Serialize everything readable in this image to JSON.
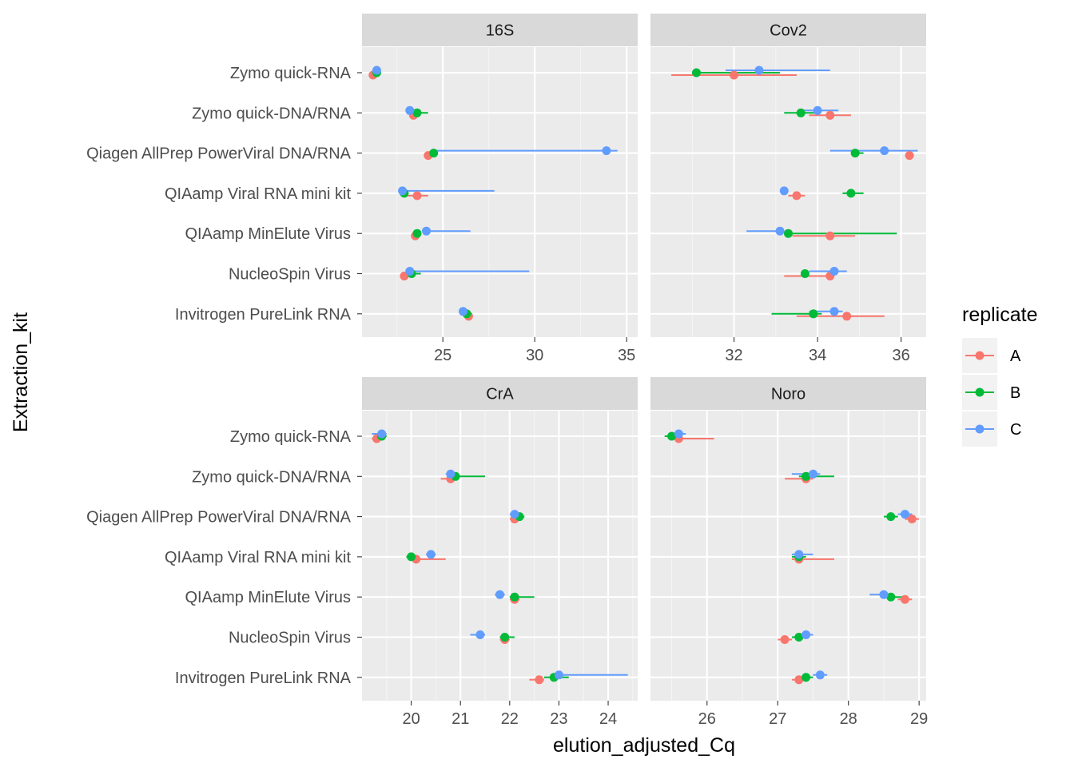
{
  "chart_data": {
    "type": "scatter",
    "subtype": "faceted dot plot with horizontal range bars",
    "xlabel": "elution_adjusted_Cq",
    "ylabel": "Extraction_kit",
    "legend": {
      "title": "replicate",
      "position": "right",
      "entries": [
        {
          "name": "A",
          "color": "#F8766D"
        },
        {
          "name": "B",
          "color": "#00BA38"
        },
        {
          "name": "C",
          "color": "#619CFF"
        }
      ]
    },
    "grid": true,
    "panel_background": "#EBEBEB",
    "strip_background": "#D9D9D9",
    "categories": [
      "Zymo quick-RNA",
      "Zymo quick-DNA/RNA",
      "Qiagen AllPrep PowerViral DNA/RNA",
      "QIAamp Viral RNA mini kit",
      "QIAamp MinElute Virus",
      "NucleoSpin Virus",
      "Invitrogen PureLink RNA"
    ],
    "facets": [
      {
        "title": "16S",
        "xlim": [
          20.6,
          35.6
        ],
        "xticks": [
          25,
          30,
          35
        ],
        "points": {
          "A": [
            {
              "x": 21.2,
              "lo": 21.2,
              "hi": 21.3
            },
            {
              "x": 23.4,
              "lo": 23.3,
              "hi": 23.5
            },
            {
              "x": 24.2,
              "lo": 24.2,
              "hi": 24.3
            },
            {
              "x": 23.6,
              "lo": 23.0,
              "hi": 24.2
            },
            {
              "x": 23.5,
              "lo": 23.4,
              "hi": 23.6
            },
            {
              "x": 22.9,
              "lo": 22.9,
              "hi": 23.0
            },
            {
              "x": 26.4,
              "lo": 26.3,
              "hi": 26.5
            }
          ],
          "B": [
            {
              "x": 21.4,
              "lo": 21.3,
              "hi": 21.5
            },
            {
              "x": 23.6,
              "lo": 23.3,
              "hi": 24.2
            },
            {
              "x": 24.5,
              "lo": 24.4,
              "hi": 24.6
            },
            {
              "x": 22.9,
              "lo": 22.8,
              "hi": 23.0
            },
            {
              "x": 23.6,
              "lo": 23.4,
              "hi": 23.8
            },
            {
              "x": 23.3,
              "lo": 23.2,
              "hi": 23.8
            },
            {
              "x": 26.3,
              "lo": 26.2,
              "hi": 26.6
            }
          ],
          "C": [
            {
              "x": 21.4,
              "lo": 21.3,
              "hi": 21.5
            },
            {
              "x": 23.2,
              "lo": 23.1,
              "hi": 23.3
            },
            {
              "x": 33.9,
              "lo": 24.4,
              "hi": 34.5
            },
            {
              "x": 22.8,
              "lo": 22.7,
              "hi": 27.8
            },
            {
              "x": 24.1,
              "lo": 23.9,
              "hi": 26.5
            },
            {
              "x": 23.2,
              "lo": 23.1,
              "hi": 29.7
            },
            {
              "x": 26.1,
              "lo": 26.0,
              "hi": 26.3
            }
          ]
        }
      },
      {
        "title": "Cov2",
        "xlim": [
          30.0,
          36.6
        ],
        "xticks": [
          32,
          34,
          36
        ],
        "points": {
          "A": [
            {
              "x": 32.0,
              "lo": 30.5,
              "hi": 33.5
            },
            {
              "x": 34.3,
              "lo": 33.8,
              "hi": 34.8
            },
            {
              "x": 36.2,
              "lo": 36.1,
              "hi": 36.3
            },
            {
              "x": 33.5,
              "lo": 33.3,
              "hi": 33.7
            },
            {
              "x": 34.3,
              "lo": 33.4,
              "hi": 34.9
            },
            {
              "x": 34.3,
              "lo": 33.2,
              "hi": 34.4
            },
            {
              "x": 34.7,
              "lo": 33.5,
              "hi": 35.6
            }
          ],
          "B": [
            {
              "x": 31.1,
              "lo": 31.0,
              "hi": 33.1
            },
            {
              "x": 33.6,
              "lo": 33.2,
              "hi": 34.0
            },
            {
              "x": 34.9,
              "lo": 34.8,
              "hi": 35.1
            },
            {
              "x": 34.8,
              "lo": 34.6,
              "hi": 35.1
            },
            {
              "x": 33.3,
              "lo": 33.2,
              "hi": 35.9
            },
            {
              "x": 33.7,
              "lo": 33.6,
              "hi": 33.8
            },
            {
              "x": 33.9,
              "lo": 32.9,
              "hi": 34.1
            }
          ],
          "C": [
            {
              "x": 32.6,
              "lo": 31.8,
              "hi": 34.3
            },
            {
              "x": 34.0,
              "lo": 33.6,
              "hi": 34.5
            },
            {
              "x": 35.6,
              "lo": 34.3,
              "hi": 36.4
            },
            {
              "x": 33.2,
              "lo": 33.1,
              "hi": 33.3
            },
            {
              "x": 33.1,
              "lo": 32.3,
              "hi": 33.2
            },
            {
              "x": 34.4,
              "lo": 33.8,
              "hi": 34.7
            },
            {
              "x": 34.4,
              "lo": 33.8,
              "hi": 34.6
            }
          ]
        }
      },
      {
        "title": "CrA",
        "xlim": [
          19.0,
          24.6
        ],
        "xticks": [
          20,
          21,
          22,
          23,
          24
        ],
        "points": {
          "A": [
            {
              "x": 19.3,
              "lo": 19.2,
              "hi": 19.4
            },
            {
              "x": 20.8,
              "lo": 20.6,
              "hi": 20.9
            },
            {
              "x": 22.1,
              "lo": 22.0,
              "hi": 22.2
            },
            {
              "x": 20.1,
              "lo": 20.0,
              "hi": 20.7
            },
            {
              "x": 22.1,
              "lo": 22.0,
              "hi": 22.2
            },
            {
              "x": 21.9,
              "lo": 21.8,
              "hi": 22.0
            },
            {
              "x": 22.6,
              "lo": 22.4,
              "hi": 22.7
            }
          ],
          "B": [
            {
              "x": 19.4,
              "lo": 19.3,
              "hi": 19.5
            },
            {
              "x": 20.9,
              "lo": 20.8,
              "hi": 21.5
            },
            {
              "x": 22.2,
              "lo": 22.1,
              "hi": 22.3
            },
            {
              "x": 20.0,
              "lo": 19.9,
              "hi": 20.1
            },
            {
              "x": 22.1,
              "lo": 22.0,
              "hi": 22.5
            },
            {
              "x": 21.9,
              "lo": 21.8,
              "hi": 22.1
            },
            {
              "x": 22.9,
              "lo": 22.7,
              "hi": 23.2
            }
          ],
          "C": [
            {
              "x": 19.4,
              "lo": 19.2,
              "hi": 19.5
            },
            {
              "x": 20.8,
              "lo": 20.7,
              "hi": 20.9
            },
            {
              "x": 22.1,
              "lo": 22.0,
              "hi": 22.2
            },
            {
              "x": 20.4,
              "lo": 20.3,
              "hi": 20.5
            },
            {
              "x": 21.8,
              "lo": 21.7,
              "hi": 21.9
            },
            {
              "x": 21.4,
              "lo": 21.2,
              "hi": 21.5
            },
            {
              "x": 23.0,
              "lo": 22.9,
              "hi": 24.4
            }
          ]
        }
      },
      {
        "title": "Noro",
        "xlim": [
          25.2,
          29.1
        ],
        "xticks": [
          26,
          27,
          28,
          29
        ],
        "points": {
          "A": [
            {
              "x": 25.6,
              "lo": 25.5,
              "hi": 26.1
            },
            {
              "x": 27.4,
              "lo": 27.1,
              "hi": 27.5
            },
            {
              "x": 28.9,
              "lo": 28.8,
              "hi": 29.0
            },
            {
              "x": 27.3,
              "lo": 27.2,
              "hi": 27.8
            },
            {
              "x": 28.8,
              "lo": 28.7,
              "hi": 28.9
            },
            {
              "x": 27.1,
              "lo": 27.0,
              "hi": 27.2
            },
            {
              "x": 27.3,
              "lo": 27.2,
              "hi": 27.4
            }
          ],
          "B": [
            {
              "x": 25.5,
              "lo": 25.4,
              "hi": 25.6
            },
            {
              "x": 27.4,
              "lo": 27.3,
              "hi": 27.8
            },
            {
              "x": 28.6,
              "lo": 28.5,
              "hi": 28.7
            },
            {
              "x": 27.3,
              "lo": 27.2,
              "hi": 27.4
            },
            {
              "x": 28.6,
              "lo": 28.5,
              "hi": 28.8
            },
            {
              "x": 27.3,
              "lo": 27.2,
              "hi": 27.4
            },
            {
              "x": 27.4,
              "lo": 27.3,
              "hi": 27.5
            }
          ],
          "C": [
            {
              "x": 25.6,
              "lo": 25.5,
              "hi": 25.7
            },
            {
              "x": 27.5,
              "lo": 27.2,
              "hi": 27.6
            },
            {
              "x": 28.8,
              "lo": 28.7,
              "hi": 28.9
            },
            {
              "x": 27.3,
              "lo": 27.2,
              "hi": 27.5
            },
            {
              "x": 28.5,
              "lo": 28.3,
              "hi": 28.6
            },
            {
              "x": 27.4,
              "lo": 27.3,
              "hi": 27.5
            },
            {
              "x": 27.6,
              "lo": 27.5,
              "hi": 27.7
            }
          ]
        }
      }
    ]
  }
}
